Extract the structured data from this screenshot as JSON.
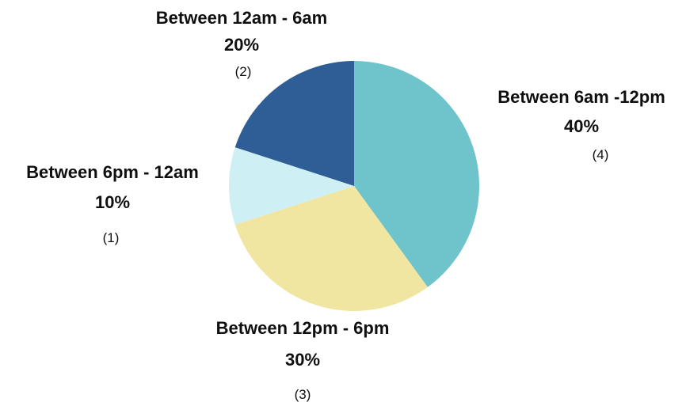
{
  "chart_data": {
    "type": "pie",
    "start": "top, clockwise",
    "slices": [
      {
        "label": "Between 6am -12pm",
        "percent_label": "40%",
        "count_label": "(4)",
        "value": 4,
        "color": "#6fc4cb"
      },
      {
        "label": "Between 12pm - 6pm",
        "percent_label": "30%",
        "count_label": "(3)",
        "value": 3,
        "color": "#f0e6a1"
      },
      {
        "label": "Between 6pm - 12am",
        "percent_label": "10%",
        "count_label": "(1)",
        "value": 1,
        "color": "#ceeff4"
      },
      {
        "label": "Between 12am - 6am",
        "percent_label": "20%",
        "count_label": "(2)",
        "value": 2,
        "color": "#2e5e95"
      }
    ]
  }
}
